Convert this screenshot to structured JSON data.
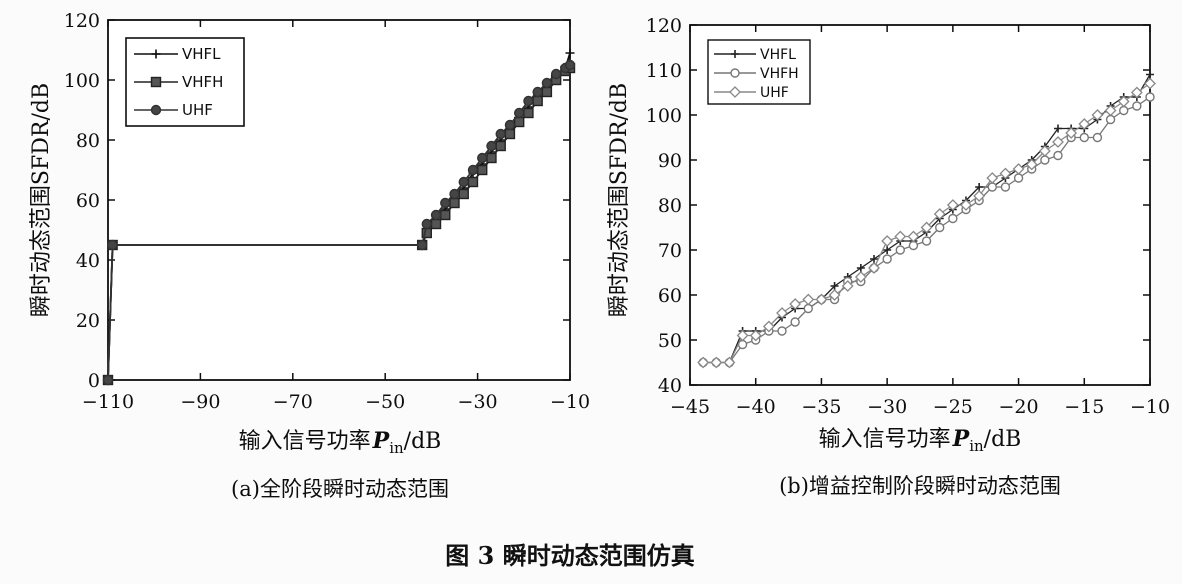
{
  "figure_caption": "图 3  瞬时动态范围仿真",
  "chart_data": [
    {
      "type": "line",
      "caption": "(a)全阶段瞬时动态范围",
      "xlabel": "输入信号功率",
      "xlabel_symbol": "P",
      "xlabel_sub": "in",
      "xlabel_unit": "/dB",
      "ylabel": "瞬时动态范围SFDR/dB",
      "xlim": [
        -110,
        -10
      ],
      "ylim": [
        0,
        120
      ],
      "xticks": [
        -110,
        -90,
        -70,
        -50,
        -30,
        -10
      ],
      "yticks": [
        0,
        20,
        40,
        60,
        80,
        100,
        120
      ],
      "grid": false,
      "legend_position": "top-left",
      "series": [
        {
          "name": "VHFL",
          "marker": "plus",
          "x": [
            -110,
            -109,
            -42,
            -41,
            -39,
            -37,
            -35,
            -33,
            -31,
            -29,
            -27,
            -25,
            -23,
            -21,
            -19,
            -17,
            -15,
            -13,
            -11,
            -10
          ],
          "y": [
            0,
            45,
            45,
            50,
            53,
            57,
            60,
            64,
            69,
            72,
            76,
            80,
            84,
            87,
            91,
            95,
            98,
            101,
            104,
            109
          ]
        },
        {
          "name": "VHFH",
          "marker": "square",
          "x": [
            -110,
            -109,
            -42,
            -41,
            -39,
            -37,
            -35,
            -33,
            -31,
            -29,
            -27,
            -25,
            -23,
            -21,
            -19,
            -17,
            -15,
            -13,
            -11,
            -10
          ],
          "y": [
            0,
            45,
            45,
            49,
            52,
            55,
            59,
            62,
            66,
            70,
            74,
            78,
            82,
            86,
            89,
            93,
            96,
            100,
            103,
            104
          ]
        },
        {
          "name": "UHF",
          "marker": "circle",
          "x": [
            -110,
            -109,
            -42,
            -41,
            -39,
            -37,
            -35,
            -33,
            -31,
            -29,
            -27,
            -25,
            -23,
            -21,
            -19,
            -17,
            -15,
            -13,
            -11,
            -10
          ],
          "y": [
            0,
            45,
            45,
            52,
            55,
            59,
            62,
            66,
            70,
            74,
            78,
            82,
            85,
            89,
            93,
            96,
            99,
            102,
            104,
            105
          ]
        }
      ]
    },
    {
      "type": "line",
      "caption": "(b)增益控制阶段瞬时动态范围",
      "xlabel": "输入信号功率",
      "xlabel_symbol": "P",
      "xlabel_sub": "in",
      "xlabel_unit": "/dB",
      "ylabel": "瞬时动态范围SFDR/dB",
      "xlim": [
        -45,
        -10
      ],
      "ylim": [
        40,
        120
      ],
      "xticks": [
        -45,
        -40,
        -35,
        -30,
        -25,
        -20,
        -15,
        -10
      ],
      "yticks": [
        40,
        50,
        60,
        70,
        80,
        90,
        100,
        110,
        120
      ],
      "grid": false,
      "legend_position": "top-left",
      "series": [
        {
          "name": "VHFL",
          "marker": "plus",
          "x": [
            -44,
            -43,
            -42,
            -41,
            -40,
            -39,
            -38,
            -37,
            -36,
            -35,
            -34,
            -33,
            -32,
            -31,
            -30,
            -29,
            -28,
            -27,
            -26,
            -25,
            -24,
            -23,
            -22,
            -21,
            -20,
            -19,
            -18,
            -17,
            -16,
            -15,
            -14,
            -13,
            -12,
            -11,
            -10
          ],
          "y": [
            45,
            45,
            45,
            52,
            52,
            52,
            55,
            57,
            57,
            59,
            62,
            64,
            66,
            68,
            70,
            72,
            72,
            74,
            77,
            79,
            81,
            84,
            84,
            86,
            88,
            90,
            93,
            97,
            97,
            97,
            99,
            102,
            104,
            104,
            109
          ]
        },
        {
          "name": "VHFH",
          "marker": "circle",
          "x": [
            -44,
            -43,
            -42,
            -41,
            -40,
            -39,
            -38,
            -37,
            -36,
            -35,
            -34,
            -33,
            -32,
            -31,
            -30,
            -29,
            -28,
            -27,
            -26,
            -25,
            -24,
            -23,
            -22,
            -21,
            -20,
            -19,
            -18,
            -17,
            -16,
            -15,
            -14,
            -13,
            -12,
            -11,
            -10
          ],
          "y": [
            45,
            45,
            45,
            49,
            50,
            52,
            52,
            54,
            57,
            59,
            59,
            63,
            63,
            66,
            68,
            70,
            71,
            72,
            75,
            77,
            79,
            81,
            84,
            84,
            86,
            88,
            90,
            91,
            95,
            95,
            95,
            99,
            101,
            102,
            104
          ]
        },
        {
          "name": "UHF",
          "marker": "diamond",
          "x": [
            -44,
            -43,
            -42,
            -41,
            -40,
            -39,
            -38,
            -37,
            -36,
            -35,
            -34,
            -33,
            -32,
            -31,
            -30,
            -29,
            -28,
            -27,
            -26,
            -25,
            -24,
            -23,
            -22,
            -21,
            -20,
            -19,
            -18,
            -17,
            -16,
            -15,
            -14,
            -13,
            -12,
            -11,
            -10
          ],
          "y": [
            45,
            45,
            45,
            51,
            51,
            53,
            56,
            58,
            59,
            59,
            60,
            62,
            64,
            66,
            72,
            73,
            73,
            75,
            78,
            80,
            80,
            82,
            86,
            87,
            88,
            89,
            92,
            94,
            96,
            98,
            100,
            101,
            103,
            105,
            107
          ]
        }
      ]
    }
  ]
}
